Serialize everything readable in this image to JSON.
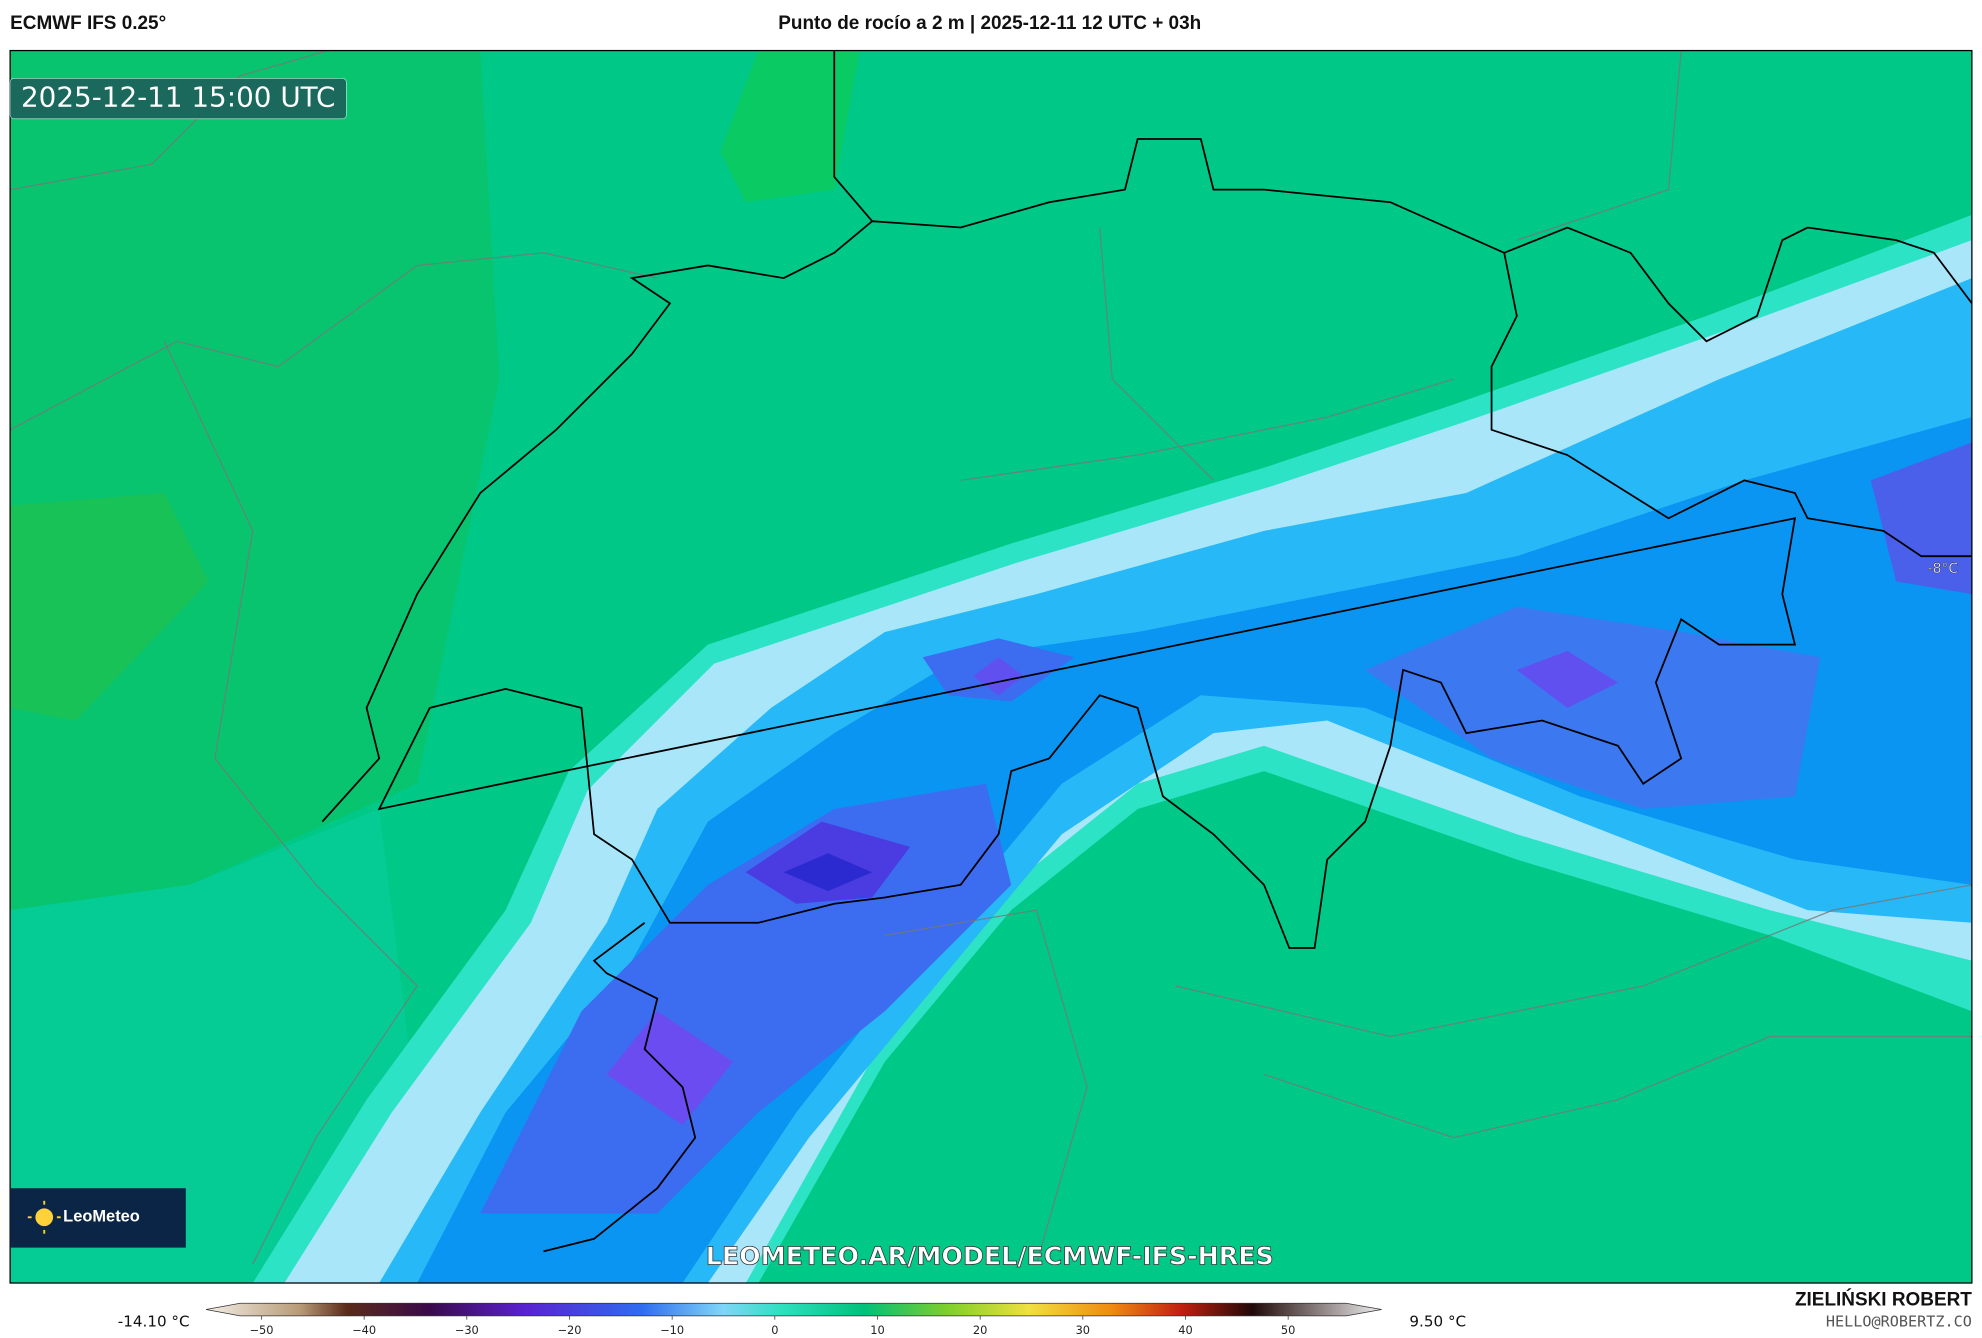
{
  "header": {
    "model": "ECMWF IFS 0.25°",
    "title": "Punto de rocío a 2 m | 2025-12-11 12 UTC + 03h"
  },
  "map": {
    "timestamp": "2025-12-11 15:00 UTC",
    "point_label": "-8°C",
    "logo": "LeoMeteo",
    "watermark": "LEOMETEO.AR/MODEL/ECMWF-IFS-HRES"
  },
  "colorbar": {
    "min_label": "-14.10 °C",
    "max_label": "9.50 °C",
    "lim": [
      -55.4,
      59.1
    ],
    "ticks": [
      {
        "value": -50,
        "label": "−50"
      },
      {
        "value": -40,
        "label": "−40"
      },
      {
        "value": -30,
        "label": "−30"
      },
      {
        "value": -20,
        "label": "−20"
      },
      {
        "value": -10,
        "label": "−10"
      },
      0,
      10,
      20,
      30,
      40,
      50
    ]
  },
  "footer": {
    "author": "ZIELIŃSKI ROBERT",
    "contact": "HELLO@ROBERTZ.CO"
  }
}
